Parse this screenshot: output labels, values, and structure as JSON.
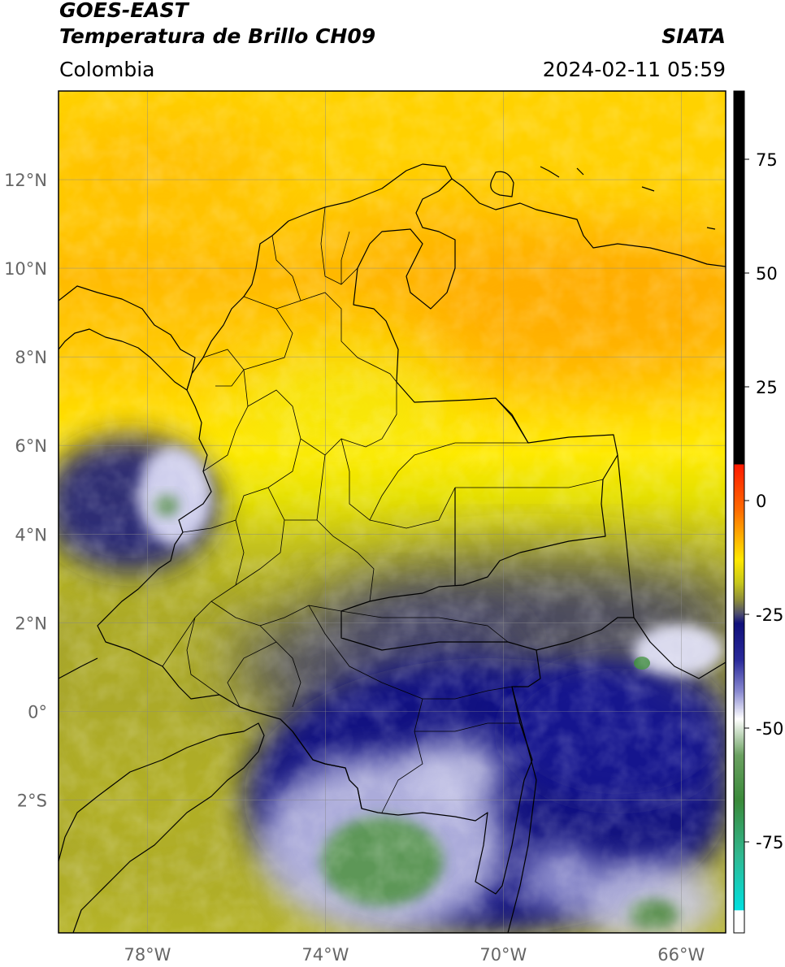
{
  "header": {
    "title_line1": "GOES-EAST",
    "title_line2": "Temperatura de Brillo CH09",
    "region": "Colombia",
    "source": "SIATA",
    "datetime": "2024-02-11 05:59"
  },
  "map": {
    "lon_labels": [
      "78°W",
      "74°W",
      "70°W",
      "66°W"
    ],
    "lat_labels": [
      "12°N",
      "10°N",
      "8°N",
      "6°N",
      "4°N",
      "2°N",
      "0°",
      "2°S"
    ],
    "lon_values": [
      -78,
      -74,
      -70,
      -66
    ],
    "lat_values": [
      12,
      10,
      8,
      6,
      4,
      2,
      0,
      -2
    ],
    "extent": {
      "lon_min": -80,
      "lon_max": -65,
      "lat_min": -5,
      "lat_max": 14
    }
  },
  "colorbar": {
    "range": [
      -95,
      90
    ],
    "tick_labels": [
      "75",
      "50",
      "25",
      "0",
      "-25",
      "-50",
      "-75"
    ],
    "tick_values": [
      75,
      50,
      25,
      0,
      -25,
      -50,
      -75
    ],
    "stops": [
      {
        "v": 90,
        "color": "#000000"
      },
      {
        "v": 8,
        "color": "#000000"
      },
      {
        "v": 7.9,
        "color": "#ff1a00"
      },
      {
        "v": -2,
        "color": "#ff6a00"
      },
      {
        "v": -8,
        "color": "#ffb000"
      },
      {
        "v": -13,
        "color": "#ffe800"
      },
      {
        "v": -18,
        "color": "#c8c81a"
      },
      {
        "v": -22,
        "color": "#8a8a3c"
      },
      {
        "v": -25,
        "color": "#4a4a70"
      },
      {
        "v": -27,
        "color": "#10107a"
      },
      {
        "v": -35,
        "color": "#2a2a9a"
      },
      {
        "v": -42,
        "color": "#8a8ad0"
      },
      {
        "v": -48,
        "color": "#ffffff"
      },
      {
        "v": -56,
        "color": "#6aa060"
      },
      {
        "v": -66,
        "color": "#3a8a3a"
      },
      {
        "v": -78,
        "color": "#30b890"
      },
      {
        "v": -90,
        "color": "#00e0e0"
      },
      {
        "v": -90.1,
        "color": "#ffffff"
      },
      {
        "v": -95,
        "color": "#ffffff"
      }
    ]
  }
}
